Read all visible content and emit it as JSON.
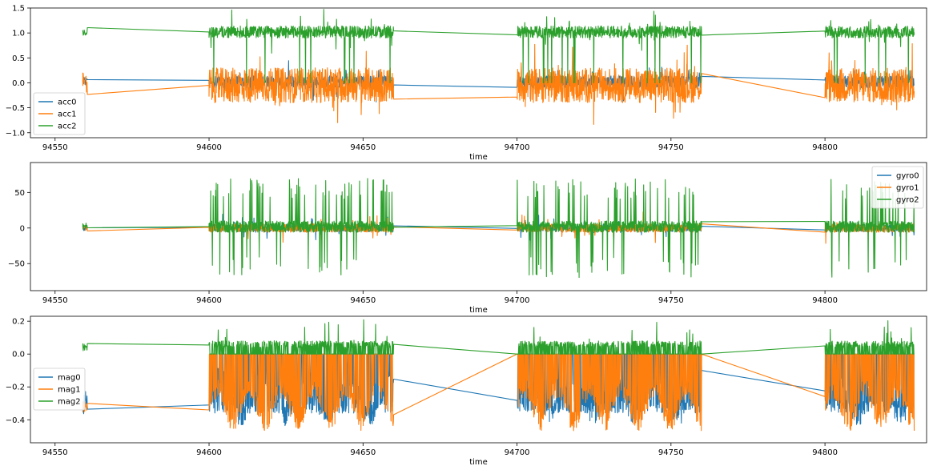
{
  "chart_data": [
    {
      "type": "line",
      "xlabel": "time",
      "ylabel": "",
      "xlim": [
        94542,
        94833
      ],
      "ylim": [
        -1.1,
        1.5
      ],
      "xticks": [
        94550,
        94600,
        94650,
        94700,
        94750,
        94800
      ],
      "xtick_labels": [
        "94550",
        "94600",
        "94650",
        "94700",
        "94750",
        "94800"
      ],
      "yticks": [
        -1.0,
        -0.5,
        0.0,
        0.5,
        1.0,
        1.5
      ],
      "ytick_labels": [
        "−1.0",
        "−0.5",
        "0.0",
        "0.5",
        "1.0",
        "1.5"
      ],
      "legend_position": "lower-left",
      "series": [
        {
          "name": "acc0",
          "color": "#1f77b4",
          "base": 0.02,
          "amp": 0.12,
          "spike": 0.35,
          "gap_points": [
            [
              94559.5,
              0.02
            ],
            [
              94600,
              0.05
            ]
          ]
        },
        {
          "name": "acc1",
          "color": "#ff7f0e",
          "base": -0.05,
          "amp": 0.35,
          "spike": 0.55,
          "gap_points": [
            [
              94559.5,
              -0.06
            ],
            [
              94600,
              -0.05
            ]
          ]
        },
        {
          "name": "acc2",
          "color": "#2ca02c",
          "base": 1.02,
          "amp": 0.12,
          "spike": 0.35,
          "gap_points": [
            [
              94559.5,
              1.03
            ],
            [
              94600,
              1.02
            ]
          ]
        }
      ],
      "segments": [
        [
          94559,
          94560.5
        ],
        [
          94600,
          94660
        ],
        [
          94700,
          94760
        ],
        [
          94800,
          94829
        ]
      ],
      "links": [
        [
          94660,
          94700
        ],
        [
          94760,
          94800
        ]
      ]
    },
    {
      "type": "line",
      "xlabel": "time",
      "ylabel": "",
      "xlim": [
        94542,
        94833
      ],
      "ylim": [
        -88,
        92
      ],
      "xticks": [
        94550,
        94600,
        94650,
        94700,
        94750,
        94800
      ],
      "xtick_labels": [
        "94550",
        "94600",
        "94650",
        "94700",
        "94750",
        "94800"
      ],
      "yticks": [
        -50,
        0,
        50
      ],
      "ytick_labels": [
        "−50",
        "0",
        "50"
      ],
      "legend_position": "upper-right",
      "series": [
        {
          "name": "gyro0",
          "color": "#1f77b4",
          "base": 0,
          "amp": 5,
          "spike": 15,
          "gap_points": [
            [
              94559.5,
              1
            ],
            [
              94600,
              1
            ]
          ]
        },
        {
          "name": "gyro1",
          "color": "#ff7f0e",
          "base": 0,
          "amp": 6,
          "spike": 18,
          "gap_points": [
            [
              94559.5,
              -2
            ],
            [
              94600,
              1
            ]
          ]
        },
        {
          "name": "gyro2",
          "color": "#2ca02c",
          "base": 2,
          "amp": 8,
          "spike": 65,
          "gap_points": [
            [
              94559.5,
              2
            ],
            [
              94600,
              2
            ]
          ]
        }
      ],
      "segments": [
        [
          94559,
          94560.5
        ],
        [
          94600,
          94660
        ],
        [
          94700,
          94760
        ],
        [
          94800,
          94829
        ]
      ],
      "links": [
        [
          94660,
          94700
        ],
        [
          94760,
          94800
        ]
      ]
    },
    {
      "type": "line",
      "xlabel": "time",
      "ylabel": "",
      "xlim": [
        94542,
        94833
      ],
      "ylim": [
        -0.54,
        0.23
      ],
      "xticks": [
        94550,
        94600,
        94650,
        94700,
        94750,
        94800
      ],
      "xtick_labels": [
        "94550",
        "94600",
        "94650",
        "94700",
        "94750",
        "94800"
      ],
      "yticks": [
        -0.4,
        -0.2,
        0.0,
        0.2
      ],
      "ytick_labels": [
        "−0.4",
        "−0.2",
        "0.0",
        "0.2"
      ],
      "legend_position": "center-left",
      "series": [
        {
          "name": "mag0",
          "color": "#1f77b4",
          "base": -0.3,
          "amp": 0.1,
          "spike": 0.15,
          "gap_points": [
            [
              94559.5,
              -0.32
            ],
            [
              94600,
              -0.31
            ]
          ]
        },
        {
          "name": "mag1",
          "color": "#ff7f0e",
          "base": -0.3,
          "amp": 0.1,
          "spike": 0.2,
          "gap_points": [
            [
              94559.5,
              -0.32
            ],
            [
              94600,
              -0.34
            ]
          ]
        },
        {
          "name": "mag2",
          "color": "#2ca02c",
          "base": 0.04,
          "amp": 0.04,
          "spike": 0.15,
          "gap_points": [
            [
              94559.5,
              0.065
            ],
            [
              94600,
              0.055
            ]
          ]
        }
      ],
      "segments": [
        [
          94559,
          94560.5
        ],
        [
          94600,
          94660
        ],
        [
          94700,
          94760
        ],
        [
          94800,
          94829
        ]
      ],
      "links": [
        [
          94660,
          94700
        ],
        [
          94760,
          94800
        ]
      ]
    }
  ]
}
